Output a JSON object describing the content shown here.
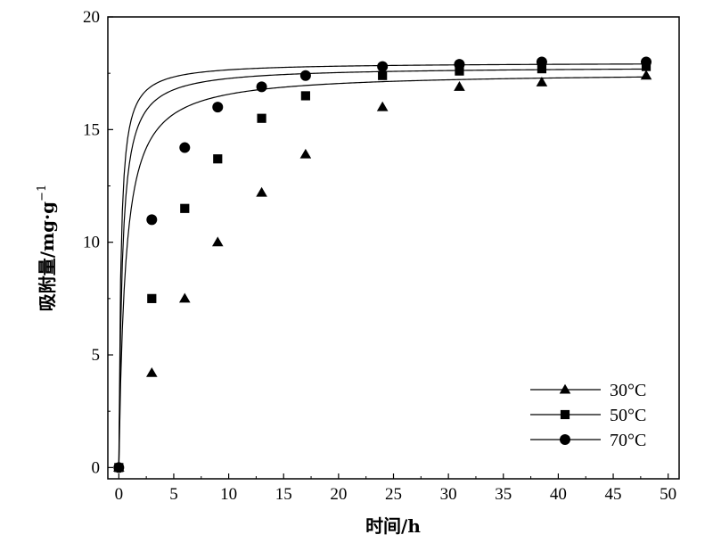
{
  "chart_data": {
    "type": "line",
    "xlabel": "时间/h",
    "ylabel_main": "吸附量/mg·g",
    "ylabel_sup": "−1",
    "xlim": [
      -1,
      51
    ],
    "ylim": [
      -0.5,
      20
    ],
    "xticks": [
      0,
      5,
      10,
      15,
      20,
      25,
      30,
      35,
      40,
      45,
      50
    ],
    "yticks": [
      0,
      5,
      10,
      15,
      20
    ],
    "legend_position": "bottom-right",
    "series": [
      {
        "name": "30°C",
        "marker": "triangle",
        "x": [
          0,
          3,
          6,
          9,
          13,
          17,
          24,
          31,
          38.5,
          48
        ],
        "y": [
          0,
          4.2,
          7.5,
          10.0,
          12.2,
          13.9,
          16.0,
          16.9,
          17.1,
          17.4
        ],
        "fit": {
          "qe": 17.55,
          "k": 0.0961
        }
      },
      {
        "name": "50°C",
        "marker": "square",
        "x": [
          0,
          3,
          6,
          9,
          13,
          17,
          24,
          31,
          38.5,
          48
        ],
        "y": [
          0,
          7.5,
          11.5,
          13.7,
          15.5,
          16.5,
          17.4,
          17.6,
          17.7,
          17.8
        ],
        "fit": {
          "qe": 17.8,
          "k": 0.183
        }
      },
      {
        "name": "70°C",
        "marker": "circle",
        "x": [
          0,
          3,
          6,
          9,
          13,
          17,
          24,
          31,
          38.5,
          48
        ],
        "y": [
          0,
          11.0,
          14.2,
          16.0,
          16.9,
          17.4,
          17.8,
          17.9,
          18.0,
          18.0
        ],
        "fit": {
          "qe": 17.98,
          "k": 0.3
        }
      }
    ]
  }
}
